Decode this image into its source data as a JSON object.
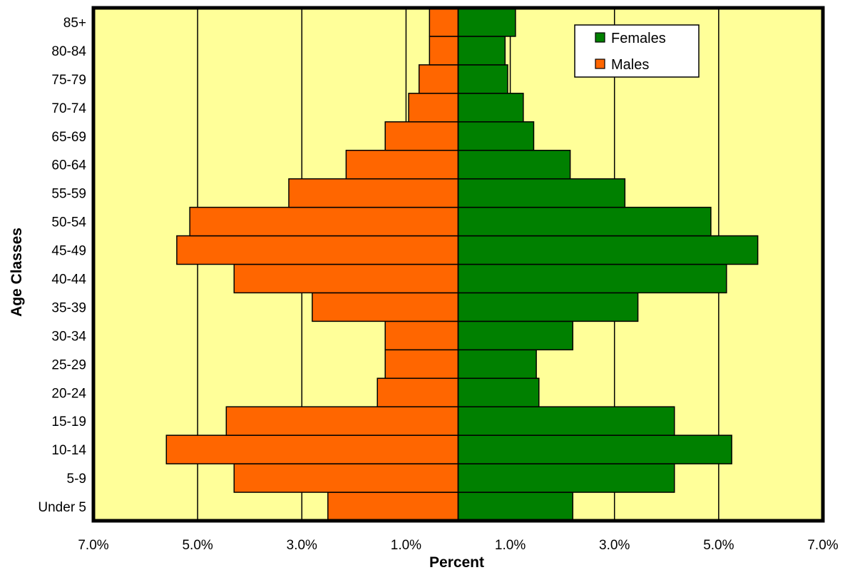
{
  "chart_data": {
    "type": "bar",
    "orientation": "horizontal",
    "subtype": "population-pyramid",
    "title": "",
    "xlabel": "Percent",
    "ylabel": "Age Classes",
    "categories": [
      "Under 5",
      "5-9",
      "10-14",
      "15-19",
      "20-24",
      "25-29",
      "30-34",
      "35-39",
      "40-44",
      "45-49",
      "50-54",
      "55-59",
      "60-64",
      "65-69",
      "70-74",
      "75-79",
      "80-84",
      "85+"
    ],
    "series": [
      {
        "name": "Males",
        "side": "left",
        "color": "#FF6600",
        "values": [
          2.5,
          4.3,
          5.6,
          4.45,
          1.55,
          1.4,
          1.4,
          2.8,
          4.3,
          5.4,
          5.15,
          3.25,
          2.15,
          1.4,
          0.95,
          0.75,
          0.55,
          0.55
        ]
      },
      {
        "name": "Females",
        "side": "right",
        "color": "#008000",
        "values": [
          2.2,
          4.15,
          5.25,
          4.15,
          1.55,
          1.5,
          2.2,
          3.45,
          5.15,
          5.75,
          4.85,
          3.2,
          2.15,
          1.45,
          1.25,
          0.95,
          0.9,
          1.1
        ]
      }
    ],
    "xlim": [
      -7,
      7
    ],
    "x_ticks": [
      "7.0%",
      "5.0%",
      "3.0%",
      "1.0%",
      "1.0%",
      "3.0%",
      "5.0%",
      "7.0%"
    ],
    "x_tick_values": [
      -7,
      -5,
      -3,
      -1,
      1,
      3,
      5,
      7
    ],
    "grid": "vertical",
    "legend": {
      "placement": "top-right",
      "entries": [
        "Females",
        "Males"
      ]
    },
    "plot_background": "#FFFF99",
    "border_color": "#000000"
  }
}
